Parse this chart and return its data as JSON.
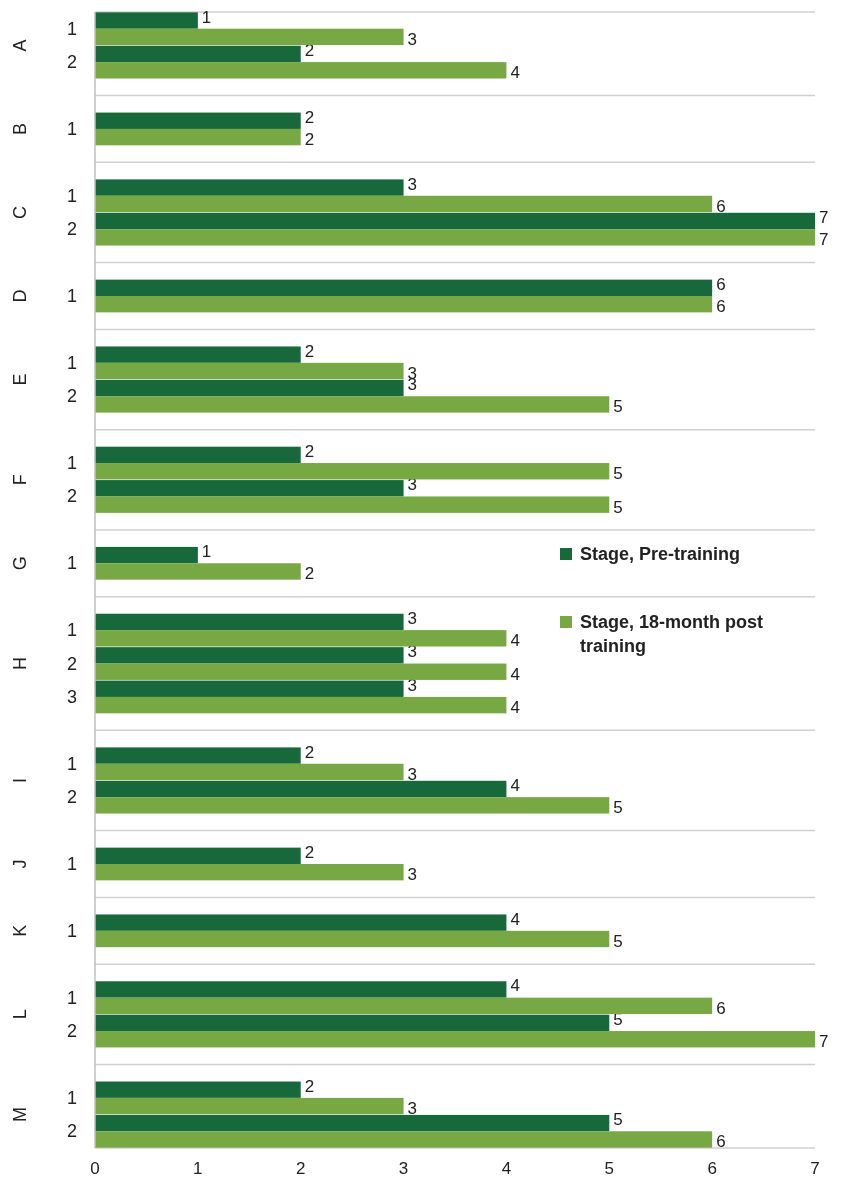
{
  "chart_data": {
    "type": "bar",
    "orientation": "horizontal",
    "categories": [
      "1",
      "2",
      null,
      "1",
      null,
      "1",
      "2",
      null,
      "1",
      null,
      "1",
      "2",
      null,
      "1",
      "2",
      null,
      "1",
      null,
      "1",
      "2",
      "3",
      null,
      "1",
      "2",
      null,
      "1",
      null,
      "1",
      null,
      "1",
      "2",
      null,
      "1",
      "2"
    ],
    "annotations": [
      "A",
      "B",
      "C",
      "D",
      "E",
      "F",
      "G",
      "H",
      "I",
      "J",
      "K",
      "L",
      "M"
    ],
    "series": [
      {
        "name": "Stage, Pre-training",
        "color": "#17683a",
        "values": [
          1,
          2,
          null,
          2,
          null,
          3,
          7,
          null,
          6,
          null,
          2,
          3,
          null,
          2,
          3,
          null,
          1,
          null,
          3,
          3,
          3,
          null,
          2,
          4,
          null,
          2,
          null,
          4,
          null,
          4,
          5,
          null,
          2,
          5
        ]
      },
      {
        "name": "Stage, 18-month post training",
        "color": "#77a843",
        "values": [
          3,
          4,
          null,
          2,
          null,
          6,
          7,
          null,
          6,
          null,
          3,
          5,
          null,
          5,
          5,
          null,
          2,
          null,
          4,
          4,
          4,
          null,
          3,
          5,
          null,
          3,
          null,
          5,
          null,
          6,
          7,
          null,
          3,
          6
        ]
      }
    ],
    "xlim": [
      0,
      7
    ],
    "xticks": [
      0,
      1,
      2,
      3,
      4,
      5,
      6,
      7
    ],
    "data_labels": true,
    "legend": "right",
    "grid": "y"
  }
}
